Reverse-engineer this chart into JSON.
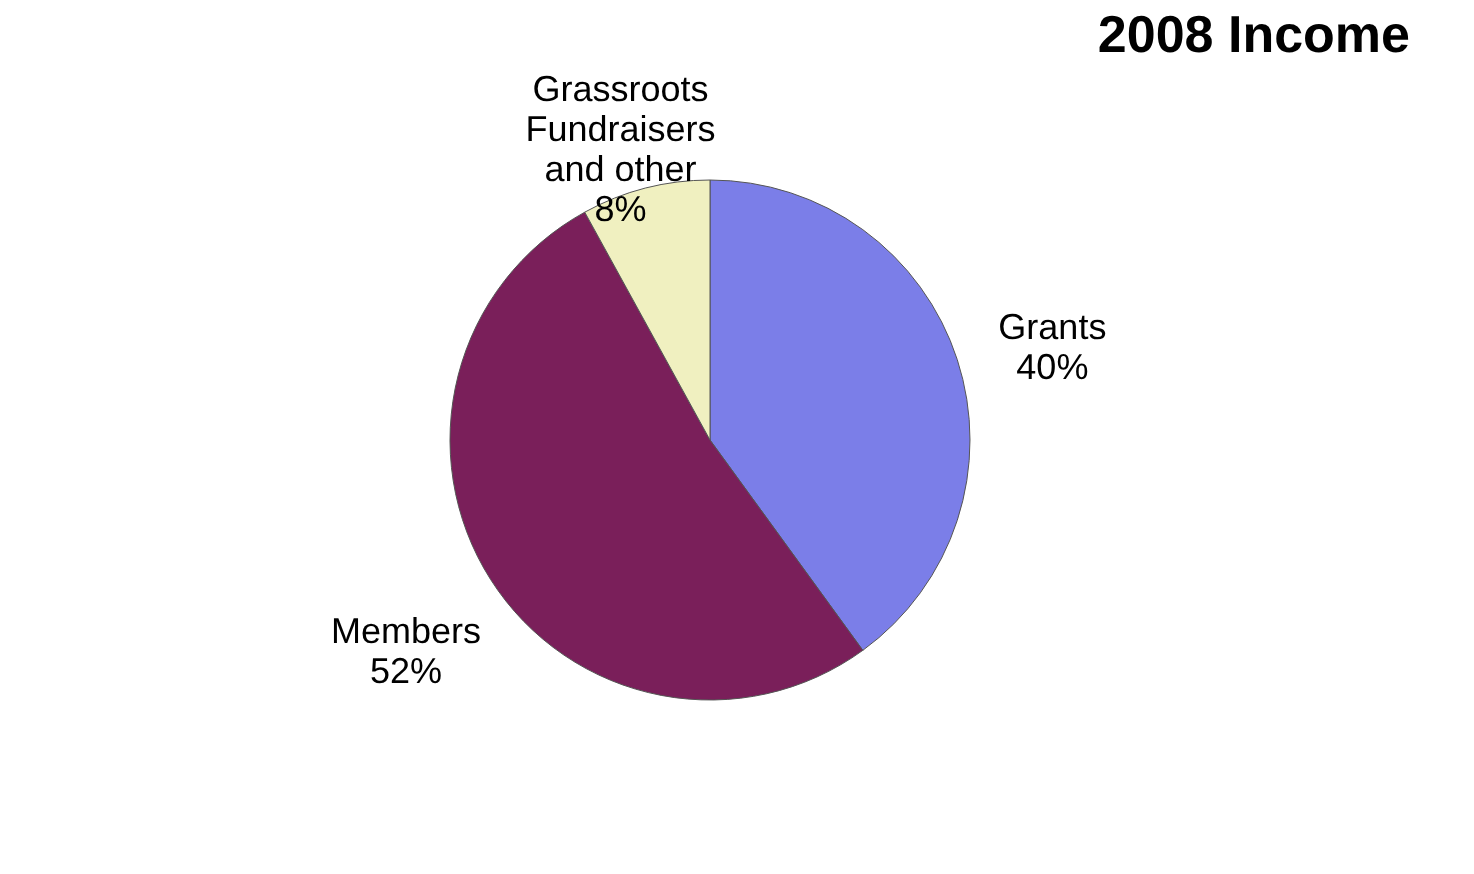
{
  "chart_data": {
    "type": "pie",
    "title": "2008 Income",
    "categories": [
      "Grants",
      "Members",
      "Grassroots Fundraisers and other"
    ],
    "values": [
      40,
      52,
      8
    ],
    "value_labels": [
      "40%",
      "52%",
      "8%"
    ],
    "colors": [
      "#7b7ee8",
      "#7a1f5a",
      "#f0f0c0"
    ],
    "legend": false
  }
}
